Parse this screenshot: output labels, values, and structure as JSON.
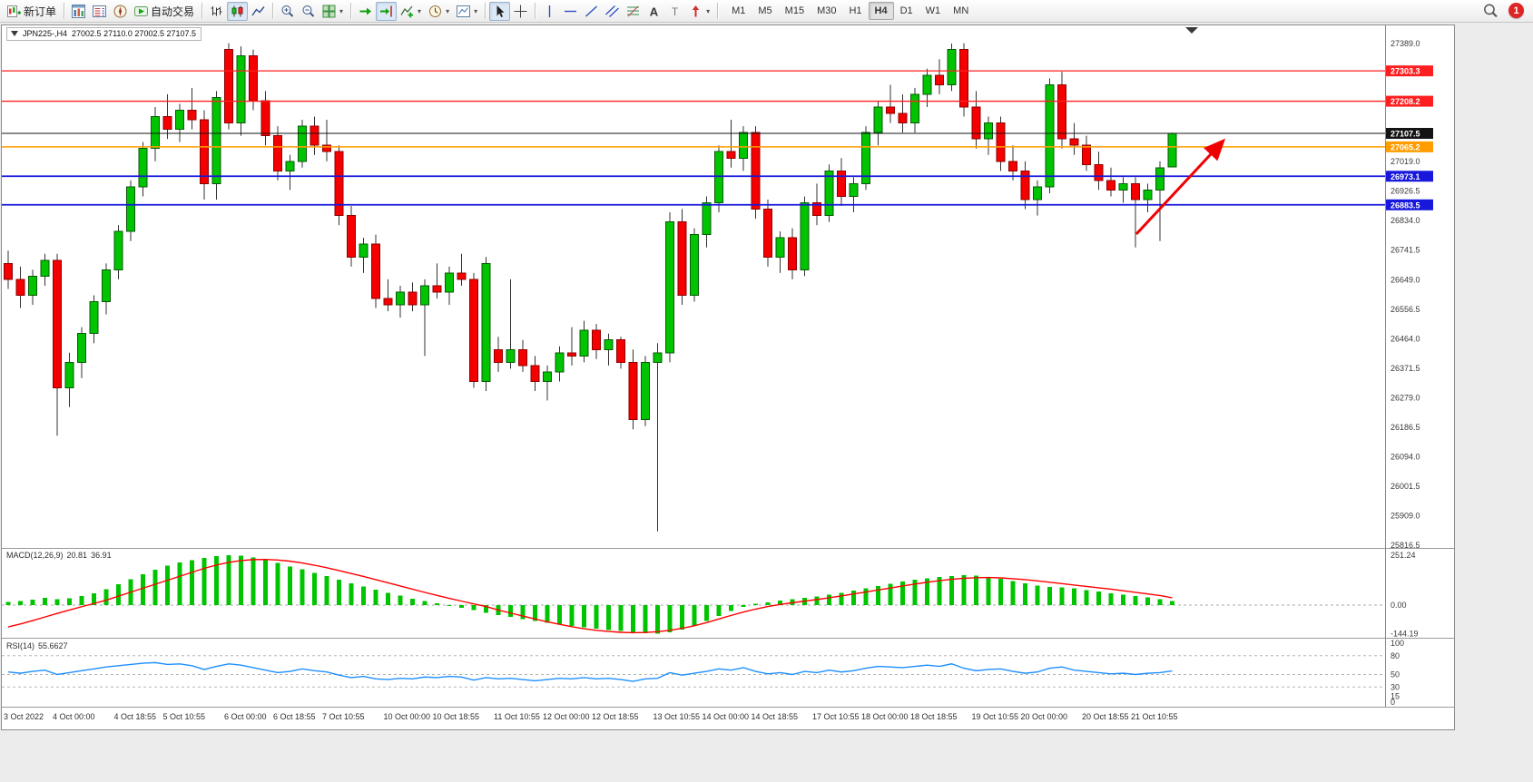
{
  "toolbar": {
    "groups": [
      {
        "items": [
          {
            "name": "new-order",
            "icon": "new-order-icon",
            "label": "新订单"
          }
        ]
      },
      {
        "items": [
          {
            "name": "charts",
            "icon": "charts-icon"
          },
          {
            "name": "market-watch",
            "icon": "market-watch-icon"
          },
          {
            "name": "navigator",
            "icon": "navigator-icon"
          },
          {
            "name": "auto-trading",
            "icon": "auto-trading-icon",
            "label": "自动交易"
          }
        ]
      },
      {
        "items": [
          {
            "name": "bar-chart-mode",
            "icon": "bars-icon"
          },
          {
            "name": "candle-chart-mode",
            "icon": "candles-icon",
            "active": true
          },
          {
            "name": "line-chart-mode",
            "icon": "line-icon"
          }
        ]
      },
      {
        "items": [
          {
            "name": "zoom-in",
            "icon": "zoom-in-icon"
          },
          {
            "name": "zoom-out",
            "icon": "zoom-out-icon"
          },
          {
            "name": "tile-windows",
            "icon": "tile-windows-icon",
            "dropdown": true
          }
        ]
      },
      {
        "items": [
          {
            "name": "auto-scroll",
            "icon": "auto-scroll-icon"
          },
          {
            "name": "chart-shift",
            "icon": "chart-shift-icon",
            "active": true
          },
          {
            "name": "indicators",
            "icon": "indicators-icon",
            "dropdown": true
          },
          {
            "name": "periods",
            "icon": "periods-icon",
            "dropdown": true
          },
          {
            "name": "templates",
            "icon": "templates-icon",
            "dropdown": true
          }
        ]
      },
      {
        "items": [
          {
            "name": "cursor",
            "icon": "cursor-icon",
            "active": true
          },
          {
            "name": "crosshair",
            "icon": "crosshair-icon"
          }
        ]
      },
      {
        "items": [
          {
            "name": "vertical-line",
            "icon": "vline-icon"
          },
          {
            "name": "horizontal-line",
            "icon": "hline-icon"
          },
          {
            "name": "trendline",
            "icon": "trendline-icon"
          },
          {
            "name": "equidistant-channel",
            "icon": "channel-icon"
          },
          {
            "name": "fibonacci",
            "icon": "fibonacci-icon"
          },
          {
            "name": "text",
            "icon": "text-icon"
          },
          {
            "name": "text-label",
            "icon": "label-icon"
          },
          {
            "name": "arrows",
            "icon": "arrows-icon",
            "dropdown": true
          }
        ]
      }
    ],
    "timeframes": [
      "M1",
      "M5",
      "M15",
      "M30",
      "H1",
      "H4",
      "D1",
      "W1",
      "MN"
    ],
    "active_timeframe": "H4",
    "notification_count": "1"
  },
  "chart": {
    "symbol_period": "JPN225-,H4",
    "ohlc_text": "27002.5 27110.0 27002.5 27107.5",
    "y_axis_labels": [
      "27389.0",
      "27019.0",
      "26926.5",
      "26834.0",
      "26741.5",
      "26649.0",
      "26556.5",
      "26464.0",
      "26371.5",
      "26279.0",
      "26186.5",
      "26094.0",
      "26001.5",
      "25909.0",
      "25816.5"
    ],
    "x_axis_labels": [
      [
        0,
        "3 Oct 2022"
      ],
      [
        4,
        "4 Oct 00:00"
      ],
      [
        9,
        "4 Oct 18:55"
      ],
      [
        13,
        "5 Oct 10:55"
      ],
      [
        18,
        "6 Oct 00:00"
      ],
      [
        22,
        "6 Oct 18:55"
      ],
      [
        26,
        "7 Oct 10:55"
      ],
      [
        31,
        "10 Oct 00:00"
      ],
      [
        35,
        "10 Oct 18:55"
      ],
      [
        40,
        "11 Oct 10:55"
      ],
      [
        44,
        "12 Oct 00:00"
      ],
      [
        48,
        "12 Oct 18:55"
      ],
      [
        53,
        "13 Oct 10:55"
      ],
      [
        57,
        "14 Oct 00:00"
      ],
      [
        61,
        "14 Oct 18:55"
      ],
      [
        66,
        "17 Oct 10:55"
      ],
      [
        70,
        "18 Oct 00:00"
      ],
      [
        74,
        "18 Oct 18:55"
      ],
      [
        79,
        "19 Oct 10:55"
      ],
      [
        83,
        "20 Oct 00:00"
      ],
      [
        88,
        "20 Oct 18:55"
      ],
      [
        92,
        "21 Oct 10:55"
      ]
    ],
    "price_lines": [
      {
        "label": "27303.3",
        "value": 27303.3,
        "color": "#fe2020",
        "width": 1.3
      },
      {
        "label": "27208.2",
        "value": 27208.2,
        "color": "#fe2020",
        "width": 1.3
      },
      {
        "label": "27107.5",
        "value": 27107.5,
        "color": "#141414",
        "width": 1
      },
      {
        "label": "27065.2",
        "value": 27065.2,
        "color": "#ff9d00",
        "width": 1.6
      },
      {
        "label": "26973.1",
        "value": 26973.1,
        "color": "#1818dc",
        "width": 1.8
      },
      {
        "label": "26883.5",
        "value": 26883.5,
        "color": "#1818dc",
        "width": 1.8
      }
    ],
    "colors": {
      "bull": "#00c400",
      "bear": "#f40000",
      "wick": "#333333",
      "macd_hist": "#00c400",
      "macd_signal": "#ff0000",
      "rsi_line": "#1e90ff",
      "arrow": "#f00000"
    }
  },
  "macd": {
    "label": "MACD(12,26,9)",
    "value_main": "20.81",
    "value_signal": "36.91",
    "scale_labels": [
      [
        "251.24",
        251.24
      ],
      [
        "0.00",
        0
      ],
      [
        "-144.19",
        -144.19
      ]
    ]
  },
  "rsi": {
    "label": "RSI(14)",
    "value": "55.6627",
    "scale_labels": [
      [
        "100",
        100
      ],
      [
        "80",
        80
      ],
      [
        "50",
        50
      ],
      [
        "30",
        30
      ],
      [
        "15",
        15
      ],
      [
        "0",
        0
      ]
    ],
    "level_lines": [
      80,
      50,
      30
    ]
  },
  "chart_data": {
    "type": "candlestick",
    "symbol": "JPN225-",
    "timeframe": "H4",
    "last_ohlc": {
      "open": 27002.5,
      "high": 27110.0,
      "low": 27002.5,
      "close": 27107.5
    },
    "y_range": [
      25816.5,
      27389.0
    ],
    "horizontal_lines": [
      27303.3,
      27208.2,
      27107.5,
      27065.2,
      26973.1,
      26883.5
    ],
    "annotation": {
      "type": "arrow",
      "color": "#f00000",
      "direction": "up-right"
    },
    "candles": [
      [
        26700,
        26740,
        26620,
        26650
      ],
      [
        26650,
        26690,
        26560,
        26600
      ],
      [
        26600,
        26680,
        26570,
        26660
      ],
      [
        26660,
        26730,
        26630,
        26710
      ],
      [
        26710,
        26730,
        26160,
        26310
      ],
      [
        26310,
        26420,
        26250,
        26390
      ],
      [
        26390,
        26500,
        26340,
        26480
      ],
      [
        26480,
        26600,
        26450,
        26580
      ],
      [
        26580,
        26700,
        26540,
        26680
      ],
      [
        26680,
        26820,
        26650,
        26800
      ],
      [
        26800,
        26960,
        26770,
        26940
      ],
      [
        26940,
        27080,
        26910,
        27060
      ],
      [
        27060,
        27190,
        27020,
        27160
      ],
      [
        27160,
        27230,
        27090,
        27120
      ],
      [
        27120,
        27200,
        27080,
        27180
      ],
      [
        27180,
        27250,
        27120,
        27150
      ],
      [
        27150,
        27180,
        26900,
        26950
      ],
      [
        26950,
        27240,
        26900,
        27220
      ],
      [
        27370,
        27390,
        27120,
        27140
      ],
      [
        27140,
        27380,
        27100,
        27350
      ],
      [
        27350,
        27370,
        27180,
        27210
      ],
      [
        27210,
        27240,
        27070,
        27100
      ],
      [
        27100,
        27130,
        26960,
        26990
      ],
      [
        26990,
        27040,
        26930,
        27020
      ],
      [
        27020,
        27150,
        27000,
        27130
      ],
      [
        27130,
        27160,
        27040,
        27070
      ],
      [
        27070,
        27150,
        27020,
        27050
      ],
      [
        27050,
        27070,
        26820,
        26850
      ],
      [
        26850,
        26880,
        26690,
        26720
      ],
      [
        26720,
        26780,
        26670,
        26760
      ],
      [
        26760,
        26790,
        26560,
        26590
      ],
      [
        26590,
        26650,
        26550,
        26570
      ],
      [
        26570,
        26630,
        26530,
        26610
      ],
      [
        26610,
        26640,
        26550,
        26570
      ],
      [
        26570,
        26650,
        26410,
        26630
      ],
      [
        26630,
        26700,
        26590,
        26610
      ],
      [
        26610,
        26690,
        26570,
        26670
      ],
      [
        26670,
        26730,
        26630,
        26650
      ],
      [
        26650,
        26670,
        26310,
        26330
      ],
      [
        26330,
        26720,
        26300,
        26700
      ],
      [
        26430,
        26470,
        26360,
        26390
      ],
      [
        26390,
        26650,
        26370,
        26430
      ],
      [
        26430,
        26460,
        26360,
        26380
      ],
      [
        26380,
        26410,
        26300,
        26330
      ],
      [
        26330,
        26380,
        26270,
        26360
      ],
      [
        26360,
        26440,
        26330,
        26420
      ],
      [
        26420,
        26500,
        26380,
        26410
      ],
      [
        26410,
        26520,
        26390,
        26490
      ],
      [
        26490,
        26510,
        26400,
        26430
      ],
      [
        26430,
        26480,
        26380,
        26460
      ],
      [
        26460,
        26470,
        26370,
        26390
      ],
      [
        26390,
        26430,
        26180,
        26210
      ],
      [
        26210,
        26410,
        26190,
        26390
      ],
      [
        26390,
        26450,
        25860,
        26420
      ],
      [
        26420,
        26860,
        26390,
        26830
      ],
      [
        26830,
        26870,
        26570,
        26600
      ],
      [
        26600,
        26810,
        26580,
        26790
      ],
      [
        26790,
        26910,
        26750,
        26890
      ],
      [
        26890,
        27070,
        26860,
        27050
      ],
      [
        27050,
        27150,
        27000,
        27030
      ],
      [
        27030,
        27130,
        26990,
        27110
      ],
      [
        27110,
        27130,
        26840,
        26870
      ],
      [
        26870,
        26900,
        26690,
        26720
      ],
      [
        26720,
        26800,
        26670,
        26780
      ],
      [
        26780,
        26810,
        26650,
        26680
      ],
      [
        26680,
        26910,
        26660,
        26890
      ],
      [
        26890,
        26950,
        26820,
        26850
      ],
      [
        26850,
        27010,
        26830,
        26990
      ],
      [
        26990,
        27030,
        26880,
        26910
      ],
      [
        26910,
        26970,
        26860,
        26950
      ],
      [
        26950,
        27130,
        26930,
        27110
      ],
      [
        27110,
        27210,
        27070,
        27190
      ],
      [
        27190,
        27260,
        27140,
        27170
      ],
      [
        27170,
        27230,
        27110,
        27140
      ],
      [
        27140,
        27250,
        27110,
        27230
      ],
      [
        27230,
        27310,
        27190,
        27290
      ],
      [
        27290,
        27340,
        27230,
        27260
      ],
      [
        27260,
        27389,
        27240,
        27370
      ],
      [
        27370,
        27390,
        27160,
        27190
      ],
      [
        27190,
        27240,
        27060,
        27090
      ],
      [
        27090,
        27160,
        27040,
        27140
      ],
      [
        27140,
        27160,
        26990,
        27020
      ],
      [
        27020,
        27070,
        26960,
        26990
      ],
      [
        26990,
        27020,
        26870,
        26900
      ],
      [
        26900,
        26960,
        26850,
        26940
      ],
      [
        26940,
        27280,
        26920,
        27260
      ],
      [
        27260,
        27300,
        27060,
        27090
      ],
      [
        27090,
        27140,
        27040,
        27070
      ],
      [
        27070,
        27100,
        26990,
        27010
      ],
      [
        27010,
        27050,
        26930,
        26960
      ],
      [
        26960,
        27000,
        26910,
        26930
      ],
      [
        26930,
        26970,
        26890,
        26950
      ],
      [
        26950,
        26970,
        26750,
        26900
      ],
      [
        26900,
        26950,
        26860,
        26930
      ],
      [
        26930,
        27020,
        26770,
        27000
      ],
      [
        27002.5,
        27110,
        27002.5,
        27107.5
      ]
    ],
    "indicators": {
      "macd": {
        "params": "12,26,9",
        "range": [
          -144.19,
          251.24
        ],
        "histogram": [
          15,
          20,
          28,
          36,
          30,
          34,
          45,
          60,
          80,
          105,
          130,
          155,
          178,
          198,
          214,
          227,
          238,
          246,
          251,
          248,
          240,
          228,
          212,
          195,
          180,
          163,
          146,
          128,
          110,
          94,
          78,
          62,
          47,
          33,
          20,
          8,
          -3,
          -14,
          -26,
          -38,
          -50,
          -60,
          -70,
          -80,
          -89,
          -97,
          -105,
          -112,
          -119,
          -125,
          -131,
          -137,
          -141,
          -144,
          -138,
          -124,
          -104,
          -80,
          -55,
          -30,
          -8,
          6,
          14,
          22,
          30,
          36,
          43,
          52,
          62,
          73,
          85,
          97,
          108,
          118,
          127,
          135,
          142,
          147,
          150,
          148,
          142,
          133,
          122,
          110,
          98,
          92,
          90,
          84,
          76,
          68,
          60,
          52,
          45,
          38,
          30,
          20.81
        ],
        "signal": [
          -110,
          -95,
          -78,
          -60,
          -42,
          -25,
          -8,
          8,
          25,
          45,
          65,
          85,
          105,
          125,
          145,
          165,
          185,
          202,
          215,
          224,
          229,
          230,
          227,
          221,
          212,
          201,
          188,
          174,
          159,
          144,
          128,
          112,
          96,
          80,
          64,
          49,
          34,
          20,
          6,
          -7,
          -25,
          -40,
          -55,
          -70,
          -84,
          -97,
          -109,
          -119,
          -127,
          -133,
          -137,
          -139,
          -138,
          -134,
          -127,
          -117,
          -104,
          -88,
          -70,
          -52,
          -35,
          -20,
          -7,
          3,
          12,
          20,
          28,
          37,
          46,
          56,
          66,
          76,
          86,
          96,
          106,
          115,
          123,
          130,
          135,
          138,
          139,
          137,
          133,
          128,
          122,
          115,
          108,
          101,
          94,
          87,
          80,
          72,
          64,
          56,
          48,
          36.91
        ]
      },
      "rsi": {
        "params": "14",
        "range": [
          0,
          100
        ],
        "values": [
          54,
          52,
          55,
          57,
          50,
          53,
          56,
          59,
          62,
          64,
          66,
          68,
          69,
          66,
          67,
          64,
          58,
          63,
          67,
          65,
          61,
          57,
          53,
          55,
          59,
          56,
          54,
          49,
          45,
          47,
          43,
          42,
          44,
          43,
          46,
          45,
          47,
          46,
          41,
          45,
          43,
          44,
          42,
          40,
          42,
          44,
          43,
          45,
          43,
          44,
          42,
          39,
          43,
          44,
          53,
          49,
          52,
          55,
          59,
          57,
          61,
          55,
          51,
          53,
          50,
          55,
          53,
          57,
          54,
          56,
          60,
          63,
          62,
          61,
          63,
          65,
          63,
          67,
          60,
          56,
          58,
          59,
          55,
          52,
          54,
          60,
          62,
          57,
          55,
          53,
          51,
          52,
          50,
          52,
          53,
          55.6627
        ]
      }
    }
  }
}
